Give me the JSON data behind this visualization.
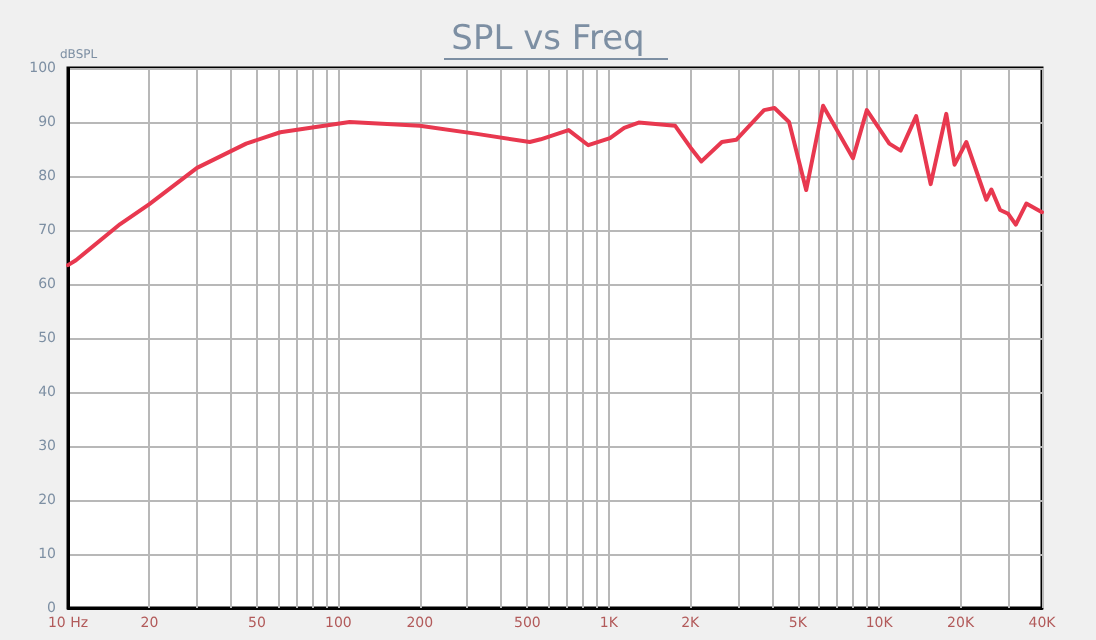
{
  "chart_data": {
    "type": "line",
    "title": "SPL vs Freq",
    "ylabel": "dBSPL",
    "x": [
      10,
      10.7,
      15.6,
      20,
      30,
      45.6,
      61,
      110,
      200,
      325,
      510,
      560,
      710,
      840,
      1010,
      1140,
      1290,
      1760,
      2010,
      2200,
      2620,
      2960,
      3750,
      4100,
      4640,
      5370,
      6200,
      8000,
      9000,
      10900,
      12000,
      13700,
      15500,
      17700,
      19000,
      21000,
      24900,
      26000,
      28000,
      30000,
      32000,
      35000,
      40000
    ],
    "series": [
      {
        "color": "#e8384f",
        "values": [
          63.5,
          64.4,
          71.1,
          74.8,
          81.5,
          86,
          88.1,
          90,
          89.3,
          87.8,
          86.3,
          86.8,
          88.5,
          85.7,
          87,
          88.9,
          89.9,
          89.3,
          85.2,
          82.7,
          86.3,
          86.7,
          92.2,
          92.6,
          90,
          77.4,
          93,
          83.3,
          92.2,
          86,
          84.7,
          91.1,
          78.5,
          91.5,
          82.1,
          86.3,
          75.6,
          77.5,
          73.7,
          73,
          71,
          74.9,
          73.3
        ]
      }
    ],
    "log": "x",
    "xlim": [
      10,
      40000
    ],
    "ylim": [
      0,
      100
    ],
    "xticks": [
      {
        "value": 10,
        "label": "10 Hz"
      },
      20,
      {
        "value": 30,
        "label": null
      },
      {
        "value": 40,
        "label": null
      },
      50,
      {
        "value": 60,
        "label": null
      },
      {
        "value": 70,
        "label": null
      },
      {
        "value": 80,
        "label": null
      },
      {
        "value": 90,
        "label": null
      },
      100,
      200,
      {
        "value": 300,
        "label": null
      },
      {
        "value": 400,
        "label": null
      },
      500,
      {
        "value": 600,
        "label": null
      },
      {
        "value": 700,
        "label": null
      },
      {
        "value": 800,
        "label": null
      },
      {
        "value": 900,
        "label": null
      },
      {
        "value": 1000,
        "label": "1K"
      },
      {
        "value": 2000,
        "label": "2K"
      },
      {
        "value": 3000,
        "label": null
      },
      {
        "value": 4000,
        "label": null
      },
      {
        "value": 5000,
        "label": "5K"
      },
      {
        "value": 6000,
        "label": null
      },
      {
        "value": 7000,
        "label": null
      },
      {
        "value": 8000,
        "label": null
      },
      {
        "value": 9000,
        "label": null
      },
      {
        "value": 10000,
        "label": "10K"
      },
      {
        "value": 20000,
        "label": "20K"
      },
      {
        "value": 30000,
        "label": null
      },
      {
        "value": 40000,
        "label": "40K"
      }
    ],
    "yticks": [
      0,
      10,
      20,
      30,
      40,
      50,
      60,
      70,
      80,
      90,
      100
    ],
    "grid": true,
    "marker": "none",
    "line_style": "solid"
  }
}
